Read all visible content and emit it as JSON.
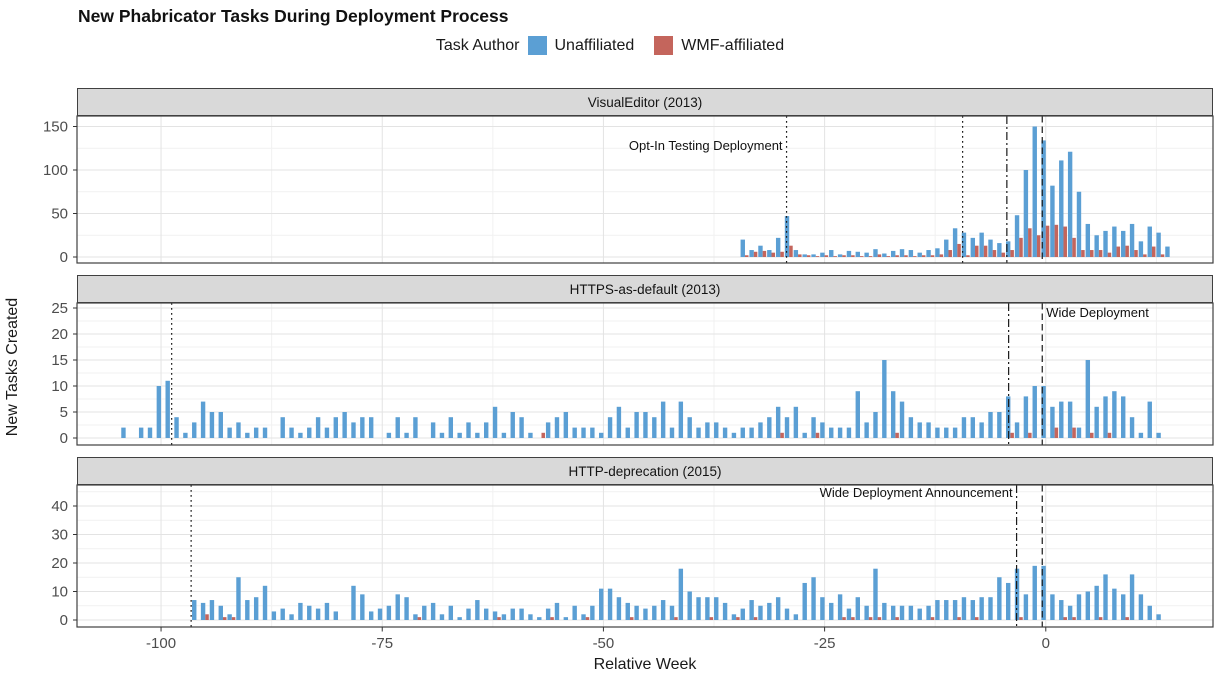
{
  "title": "New Phabricator Tasks During Deployment Process",
  "legend": {
    "title": "Task Author",
    "items": [
      {
        "name": "Unaffiliated",
        "color": "#5B9FD4"
      },
      {
        "name": "WMF-affiliated",
        "color": "#C4655C"
      }
    ]
  },
  "axes": {
    "x_label": "Relative Week",
    "y_label": "New Tasks Created",
    "x_ticks": [
      -100,
      -75,
      -50,
      -25,
      0
    ],
    "x_domain": [
      -109.5,
      18.9
    ]
  },
  "colors": {
    "unaffiliated": "#5B9FD4",
    "wmf": "#C4655C",
    "strip_bg": "#D9D9D9",
    "panel_border": "#404040",
    "grid_major": "#E3E3E3",
    "grid_minor": "#F1F1F1",
    "tick_text": "#4D4D4D",
    "event_line": "#1A1A1A"
  },
  "chart_data": [
    {
      "type": "bar",
      "facet": "VisualEditor (2013)",
      "ylim": [
        0,
        164
      ],
      "y_ticks": [
        0,
        50,
        100,
        150
      ],
      "series_names": [
        "Unaffiliated",
        "WMF-affiliated"
      ],
      "events": [
        {
          "week": -29.3,
          "style": "dotted",
          "label": "Opt-In Testing Deployment",
          "align": "left",
          "ty": 34
        },
        {
          "week": -9.4,
          "style": "dotted"
        },
        {
          "week": -4.4,
          "style": "dashdot"
        },
        {
          "week": -0.4,
          "style": "dashed"
        }
      ],
      "points": [
        [
          -34,
          20,
          2
        ],
        [
          -33,
          8,
          6
        ],
        [
          -32,
          13,
          7
        ],
        [
          -31,
          8,
          5
        ],
        [
          -30,
          22,
          6
        ],
        [
          -29,
          47,
          13
        ],
        [
          -28,
          8,
          3
        ],
        [
          -27,
          3,
          2
        ],
        [
          -26,
          3,
          1
        ],
        [
          -25,
          5,
          2
        ],
        [
          -24,
          8,
          1
        ],
        [
          -23,
          3,
          2
        ],
        [
          -22,
          7,
          2
        ],
        [
          -21,
          6,
          1
        ],
        [
          -20,
          5,
          1
        ],
        [
          -19,
          9,
          3
        ],
        [
          -18,
          4,
          1
        ],
        [
          -17,
          7,
          2
        ],
        [
          -16,
          9,
          2
        ],
        [
          -15,
          8,
          1
        ],
        [
          -14,
          5,
          2
        ],
        [
          -13,
          8,
          2
        ],
        [
          -12,
          10,
          3
        ],
        [
          -11,
          20,
          8
        ],
        [
          -10,
          33,
          15
        ],
        [
          -9,
          28,
          2
        ],
        [
          -8,
          22,
          13
        ],
        [
          -7,
          28,
          13
        ],
        [
          -6,
          20,
          8
        ],
        [
          -5,
          16,
          5
        ],
        [
          -4,
          18,
          8
        ],
        [
          -3,
          48,
          22
        ],
        [
          -2,
          100,
          33
        ],
        [
          -1,
          150,
          25
        ],
        [
          0,
          134,
          36
        ],
        [
          1,
          82,
          37
        ],
        [
          2,
          111,
          35
        ],
        [
          3,
          121,
          22
        ],
        [
          4,
          75,
          8
        ],
        [
          5,
          38,
          8
        ],
        [
          6,
          25,
          8
        ],
        [
          7,
          30,
          5
        ],
        [
          8,
          35,
          12
        ],
        [
          9,
          30,
          13
        ],
        [
          10,
          38,
          8
        ],
        [
          11,
          18,
          3
        ],
        [
          12,
          35,
          12
        ],
        [
          13,
          28,
          3
        ],
        [
          14,
          12,
          0
        ]
      ]
    },
    {
      "type": "bar",
      "facet": "HTTPS-as-default (2013)",
      "ylim": [
        0,
        25.8
      ],
      "y_ticks": [
        0,
        5,
        10,
        15,
        20,
        25
      ],
      "series_names": [
        "Unaffiliated",
        "WMF-affiliated"
      ],
      "events": [
        {
          "week": -98.8,
          "style": "dotted"
        },
        {
          "week": -4.2,
          "style": "dashdot"
        },
        {
          "week": -0.4,
          "style": "dashed",
          "label": "Wide Deployment",
          "align": "right",
          "ty": 14
        }
      ],
      "points": [
        [
          -104,
          2,
          0
        ],
        [
          -102,
          2,
          0
        ],
        [
          -101,
          2,
          0
        ],
        [
          -100,
          10,
          0
        ],
        [
          -99,
          11,
          0
        ],
        [
          -98,
          4,
          0
        ],
        [
          -97,
          1,
          0
        ],
        [
          -96,
          3,
          0
        ],
        [
          -95,
          7,
          0
        ],
        [
          -94,
          5,
          0
        ],
        [
          -93,
          5,
          0
        ],
        [
          -92,
          2,
          0
        ],
        [
          -91,
          3,
          0
        ],
        [
          -90,
          1,
          0
        ],
        [
          -89,
          2,
          0
        ],
        [
          -88,
          2,
          0
        ],
        [
          -86,
          4,
          0
        ],
        [
          -85,
          2,
          0
        ],
        [
          -84,
          1,
          0
        ],
        [
          -83,
          2,
          0
        ],
        [
          -82,
          4,
          0
        ],
        [
          -81,
          2,
          0
        ],
        [
          -80,
          4,
          0
        ],
        [
          -79,
          5,
          0
        ],
        [
          -78,
          3,
          0
        ],
        [
          -77,
          4,
          0
        ],
        [
          -76,
          4,
          0
        ],
        [
          -74,
          1,
          0
        ],
        [
          -73,
          4,
          0
        ],
        [
          -72,
          1,
          0
        ],
        [
          -71,
          4,
          0
        ],
        [
          -69,
          3,
          0
        ],
        [
          -68,
          1,
          0
        ],
        [
          -67,
          4,
          0
        ],
        [
          -66,
          1,
          0
        ],
        [
          -65,
          3,
          0
        ],
        [
          -64,
          1,
          0
        ],
        [
          -63,
          3,
          0
        ],
        [
          -62,
          6,
          0
        ],
        [
          -61,
          1,
          0
        ],
        [
          -60,
          5,
          0
        ],
        [
          -59,
          4,
          0
        ],
        [
          -58,
          1,
          0
        ],
        [
          -57,
          0,
          1
        ],
        [
          -56,
          3,
          0
        ],
        [
          -55,
          4,
          0
        ],
        [
          -54,
          5,
          0
        ],
        [
          -53,
          2,
          0
        ],
        [
          -52,
          2,
          0
        ],
        [
          -51,
          2,
          0
        ],
        [
          -50,
          1,
          0
        ],
        [
          -49,
          4,
          0
        ],
        [
          -48,
          6,
          0
        ],
        [
          -47,
          2,
          0
        ],
        [
          -46,
          5,
          0
        ],
        [
          -45,
          5,
          0
        ],
        [
          -44,
          4,
          0
        ],
        [
          -43,
          7,
          0
        ],
        [
          -42,
          2,
          0
        ],
        [
          -41,
          7,
          0
        ],
        [
          -40,
          4,
          0
        ],
        [
          -39,
          2,
          0
        ],
        [
          -38,
          3,
          0
        ],
        [
          -37,
          3,
          0
        ],
        [
          -36,
          2,
          0
        ],
        [
          -35,
          1,
          0
        ],
        [
          -34,
          2,
          0
        ],
        [
          -33,
          2,
          0
        ],
        [
          -32,
          3,
          0
        ],
        [
          -31,
          4,
          0
        ],
        [
          -30,
          6,
          1
        ],
        [
          -29,
          4,
          0
        ],
        [
          -28,
          6,
          0
        ],
        [
          -27,
          1,
          0
        ],
        [
          -26,
          4,
          1
        ],
        [
          -25,
          3,
          0
        ],
        [
          -24,
          2,
          0
        ],
        [
          -23,
          2,
          0
        ],
        [
          -22,
          2,
          0
        ],
        [
          -21,
          9,
          0
        ],
        [
          -20,
          3,
          0
        ],
        [
          -19,
          5,
          0
        ],
        [
          -18,
          15,
          0
        ],
        [
          -17,
          9,
          1
        ],
        [
          -16,
          7,
          0
        ],
        [
          -15,
          4,
          0
        ],
        [
          -14,
          3,
          0
        ],
        [
          -13,
          3,
          0
        ],
        [
          -12,
          2,
          0
        ],
        [
          -11,
          2,
          0
        ],
        [
          -10,
          2,
          0
        ],
        [
          -9,
          4,
          0
        ],
        [
          -8,
          4,
          0
        ],
        [
          -7,
          3,
          0
        ],
        [
          -6,
          5,
          0
        ],
        [
          -5,
          5,
          0
        ],
        [
          -4,
          8,
          1
        ],
        [
          -3,
          3,
          0
        ],
        [
          -2,
          8,
          1
        ],
        [
          -1,
          10,
          0
        ],
        [
          0,
          10,
          0
        ],
        [
          1,
          6,
          2
        ],
        [
          2,
          7,
          0
        ],
        [
          3,
          7,
          2
        ],
        [
          4,
          2,
          0
        ],
        [
          5,
          15,
          1
        ],
        [
          6,
          6,
          0
        ],
        [
          7,
          8,
          1
        ],
        [
          8,
          9,
          0
        ],
        [
          9,
          8,
          0
        ],
        [
          10,
          4,
          0
        ],
        [
          11,
          1,
          0
        ],
        [
          12,
          7,
          0
        ],
        [
          13,
          1,
          0
        ]
      ]
    },
    {
      "type": "bar",
      "facet": "HTTP-deprecation (2015)",
      "ylim": [
        0,
        47
      ],
      "y_ticks": [
        0,
        10,
        20,
        30,
        40
      ],
      "series_names": [
        "Unaffiliated",
        "WMF-affiliated"
      ],
      "events": [
        {
          "week": -96.6,
          "style": "dotted"
        },
        {
          "week": -3.3,
          "style": "dashdot",
          "label": "Wide Deployment Announcement",
          "align": "left",
          "ty": 12
        },
        {
          "week": -0.4,
          "style": "dashed"
        }
      ],
      "points": [
        [
          -96,
          7,
          0
        ],
        [
          -95,
          6,
          2
        ],
        [
          -94,
          7,
          0
        ],
        [
          -93,
          5,
          1
        ],
        [
          -92,
          2,
          1
        ],
        [
          -91,
          15,
          0
        ],
        [
          -90,
          7,
          0
        ],
        [
          -89,
          8,
          0
        ],
        [
          -88,
          12,
          0
        ],
        [
          -87,
          3,
          0
        ],
        [
          -86,
          4,
          0
        ],
        [
          -85,
          2,
          0
        ],
        [
          -84,
          6,
          0
        ],
        [
          -83,
          5,
          0
        ],
        [
          -82,
          4,
          0
        ],
        [
          -81,
          6,
          0
        ],
        [
          -80,
          3,
          0
        ],
        [
          -78,
          12,
          0
        ],
        [
          -77,
          9,
          0
        ],
        [
          -76,
          3,
          0
        ],
        [
          -75,
          4,
          0
        ],
        [
          -74,
          5,
          0
        ],
        [
          -73,
          9,
          0
        ],
        [
          -72,
          8,
          0
        ],
        [
          -71,
          2,
          1
        ],
        [
          -70,
          5,
          0
        ],
        [
          -69,
          6,
          0
        ],
        [
          -68,
          2,
          0
        ],
        [
          -67,
          5,
          0
        ],
        [
          -66,
          1,
          0
        ],
        [
          -65,
          4,
          0
        ],
        [
          -64,
          7,
          0
        ],
        [
          -63,
          4,
          0
        ],
        [
          -62,
          3,
          1
        ],
        [
          -61,
          2,
          0
        ],
        [
          -60,
          4,
          0
        ],
        [
          -59,
          4,
          0
        ],
        [
          -58,
          2,
          0
        ],
        [
          -57,
          1,
          0
        ],
        [
          -56,
          4,
          1
        ],
        [
          -55,
          6,
          0
        ],
        [
          -54,
          1,
          0
        ],
        [
          -53,
          5,
          0
        ],
        [
          -52,
          2,
          1
        ],
        [
          -51,
          5,
          0
        ],
        [
          -50,
          11,
          0
        ],
        [
          -49,
          11,
          0
        ],
        [
          -48,
          8,
          0
        ],
        [
          -47,
          6,
          1
        ],
        [
          -46,
          5,
          0
        ],
        [
          -45,
          4,
          0
        ],
        [
          -44,
          5,
          0
        ],
        [
          -43,
          7,
          0
        ],
        [
          -42,
          5,
          1
        ],
        [
          -41,
          18,
          0
        ],
        [
          -40,
          10,
          0
        ],
        [
          -39,
          8,
          0
        ],
        [
          -38,
          8,
          1
        ],
        [
          -37,
          8,
          0
        ],
        [
          -36,
          6,
          0
        ],
        [
          -35,
          2,
          1
        ],
        [
          -34,
          4,
          0
        ],
        [
          -33,
          7,
          1
        ],
        [
          -32,
          5,
          0
        ],
        [
          -31,
          6,
          0
        ],
        [
          -30,
          8,
          0
        ],
        [
          -29,
          4,
          0
        ],
        [
          -28,
          2,
          0
        ],
        [
          -27,
          13,
          0
        ],
        [
          -26,
          15,
          0
        ],
        [
          -25,
          8,
          0
        ],
        [
          -24,
          6,
          0
        ],
        [
          -23,
          9,
          1
        ],
        [
          -22,
          4,
          1
        ],
        [
          -21,
          8,
          0
        ],
        [
          -20,
          5,
          1
        ],
        [
          -19,
          18,
          1
        ],
        [
          -18,
          6,
          0
        ],
        [
          -17,
          5,
          1
        ],
        [
          -16,
          5,
          0
        ],
        [
          -15,
          5,
          0
        ],
        [
          -14,
          4,
          0
        ],
        [
          -13,
          5,
          1
        ],
        [
          -12,
          7,
          0
        ],
        [
          -11,
          7,
          0
        ],
        [
          -10,
          7,
          1
        ],
        [
          -9,
          8,
          0
        ],
        [
          -8,
          7,
          1
        ],
        [
          -7,
          8,
          0
        ],
        [
          -6,
          8,
          0
        ],
        [
          -5,
          15,
          0
        ],
        [
          -4,
          13,
          0
        ],
        [
          -3,
          18,
          1
        ],
        [
          -2,
          9,
          0
        ],
        [
          -1,
          19,
          0
        ],
        [
          0,
          19,
          0
        ],
        [
          1,
          9,
          0
        ],
        [
          2,
          7,
          1
        ],
        [
          3,
          5,
          1
        ],
        [
          4,
          9,
          0
        ],
        [
          5,
          10,
          0
        ],
        [
          6,
          12,
          1
        ],
        [
          7,
          16,
          0
        ],
        [
          8,
          11,
          0
        ],
        [
          9,
          9,
          1
        ],
        [
          10,
          16,
          0
        ],
        [
          11,
          9,
          0
        ],
        [
          12,
          5,
          0
        ],
        [
          13,
          2,
          0
        ]
      ]
    }
  ]
}
